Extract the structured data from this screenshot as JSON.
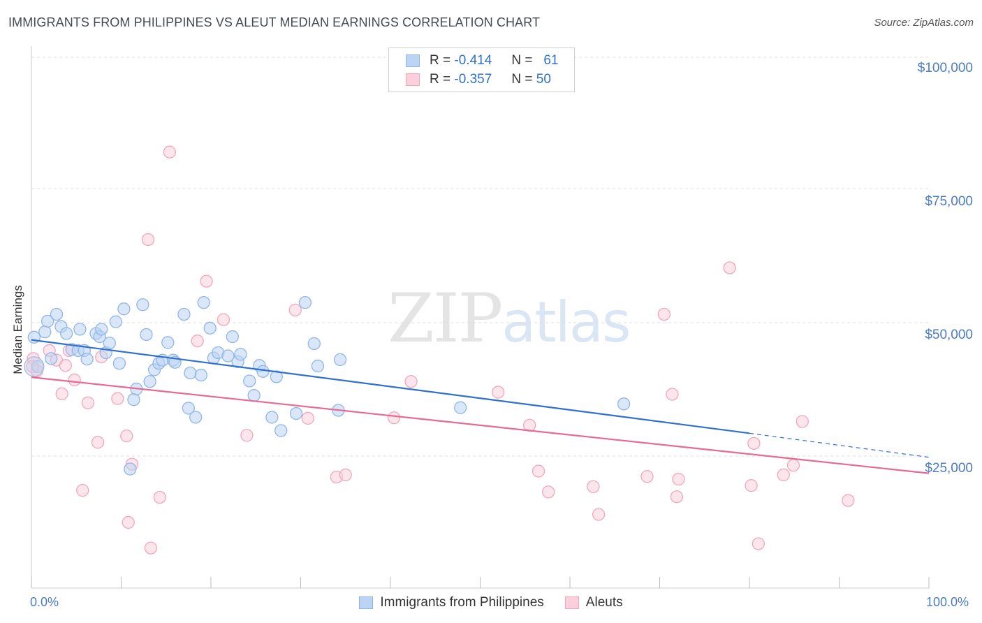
{
  "header": {
    "title": "IMMIGRANTS FROM PHILIPPINES VS ALEUT MEDIAN EARNINGS CORRELATION CHART",
    "source": "Source: ZipAtlas.com"
  },
  "watermark": {
    "zip": "ZIP",
    "atlas": "atlas"
  },
  "legend": {
    "rows": [
      {
        "r_label": "R =",
        "r_value": "-0.414",
        "n_label": "N =",
        "n_value": "61",
        "color": "#8fb6e8",
        "fill": "#bcd4f3"
      },
      {
        "r_label": "R =",
        "r_value": "-0.357",
        "n_label": "N =",
        "n_value": "50",
        "color": "#f0a7bd",
        "fill": "#fbd0dc"
      }
    ]
  },
  "bottom_legend": [
    {
      "label": "Immigrants from Philippines",
      "color": "#8fb6e8",
      "fill": "#bcd4f3"
    },
    {
      "label": "Aleuts",
      "color": "#f0a7bd",
      "fill": "#fbd0dc"
    }
  ],
  "colors": {
    "blue_line": "#2f6fd0",
    "pink_line": "#e66a93",
    "grid": "#dddddd",
    "tick_text": "#4a7cc4"
  },
  "chart_data": {
    "type": "scatter",
    "title": "IMMIGRANTS FROM PHILIPPINES VS ALEUT MEDIAN EARNINGS CORRELATION CHART",
    "xlabel": "",
    "ylabel": "Median Earnings",
    "xlim": [
      0,
      100
    ],
    "ylim": [
      0,
      105000
    ],
    "x_tick_labels": [
      "0.0%",
      "100.0%"
    ],
    "y_ticks": [
      25000,
      50000,
      75000,
      100000
    ],
    "y_tick_labels": [
      "$25,000",
      "$50,000",
      "$75,000",
      "$100,000"
    ],
    "grid": true,
    "legend_position": "top-center",
    "series": [
      {
        "name": "Immigrants from Philippines",
        "trend": {
          "x0": 0,
          "y0": 49000,
          "x1": 80,
          "y1": 31500,
          "dashed_to_x": 100,
          "dashed_to_y": 27000
        },
        "points": [
          [
            0.3,
            49500
          ],
          [
            0.7,
            44000
          ],
          [
            1.5,
            50500
          ],
          [
            1.8,
            52500
          ],
          [
            2.2,
            45500
          ],
          [
            2.8,
            53800
          ],
          [
            3.3,
            51500
          ],
          [
            3.9,
            50200
          ],
          [
            4.5,
            47200
          ],
          [
            5.2,
            47000
          ],
          [
            5.4,
            51000
          ],
          [
            5.9,
            47000
          ],
          [
            6.2,
            45400
          ],
          [
            7.2,
            50200
          ],
          [
            7.6,
            49600
          ],
          [
            7.8,
            51000
          ],
          [
            8.3,
            46600
          ],
          [
            8.7,
            48400
          ],
          [
            9.4,
            52400
          ],
          [
            9.8,
            44600
          ],
          [
            10.3,
            54800
          ],
          [
            11.0,
            24800
          ],
          [
            11.4,
            37800
          ],
          [
            11.7,
            39800
          ],
          [
            12.4,
            55600
          ],
          [
            12.8,
            50000
          ],
          [
            13.2,
            41200
          ],
          [
            13.7,
            43400
          ],
          [
            14.2,
            44600
          ],
          [
            14.6,
            45200
          ],
          [
            15.2,
            48500
          ],
          [
            15.8,
            45200
          ],
          [
            16.0,
            44800
          ],
          [
            17.0,
            53800
          ],
          [
            17.5,
            36200
          ],
          [
            17.7,
            42800
          ],
          [
            18.3,
            34500
          ],
          [
            18.9,
            42400
          ],
          [
            19.2,
            56000
          ],
          [
            19.9,
            51200
          ],
          [
            20.3,
            45600
          ],
          [
            20.8,
            46600
          ],
          [
            21.9,
            46000
          ],
          [
            22.4,
            49600
          ],
          [
            23.0,
            44900
          ],
          [
            23.3,
            46300
          ],
          [
            24.3,
            41300
          ],
          [
            24.8,
            38600
          ],
          [
            25.4,
            44200
          ],
          [
            25.8,
            43100
          ],
          [
            26.8,
            34500
          ],
          [
            27.3,
            42100
          ],
          [
            27.8,
            32000
          ],
          [
            29.5,
            35200
          ],
          [
            30.5,
            56000
          ],
          [
            31.5,
            48300
          ],
          [
            31.9,
            44100
          ],
          [
            34.2,
            35800
          ],
          [
            34.4,
            45300
          ],
          [
            47.8,
            36300
          ],
          [
            66.0,
            37000
          ]
        ]
      },
      {
        "name": "Aleuts",
        "trend": {
          "x0": 0,
          "y0": 42000,
          "x1": 100,
          "y1": 24000
        },
        "points": [
          [
            0.2,
            45500
          ],
          [
            0.6,
            43200
          ],
          [
            2.0,
            47000
          ],
          [
            2.8,
            45200
          ],
          [
            3.4,
            38900
          ],
          [
            3.8,
            44200
          ],
          [
            4.2,
            47000
          ],
          [
            4.8,
            41500
          ],
          [
            5.7,
            20800
          ],
          [
            6.3,
            37200
          ],
          [
            7.4,
            29800
          ],
          [
            7.8,
            45800
          ],
          [
            9.6,
            38000
          ],
          [
            10.6,
            31000
          ],
          [
            10.8,
            14800
          ],
          [
            11.2,
            25700
          ],
          [
            13.0,
            67800
          ],
          [
            13.3,
            10000
          ],
          [
            14.3,
            19500
          ],
          [
            15.4,
            84200
          ],
          [
            18.5,
            48800
          ],
          [
            19.5,
            60000
          ],
          [
            21.4,
            52800
          ],
          [
            24.0,
            31100
          ],
          [
            29.4,
            54600
          ],
          [
            30.8,
            34300
          ],
          [
            34.0,
            23300
          ],
          [
            35.0,
            23700
          ],
          [
            40.4,
            34400
          ],
          [
            42.3,
            41200
          ],
          [
            52.0,
            39200
          ],
          [
            55.5,
            33000
          ],
          [
            56.5,
            24400
          ],
          [
            57.6,
            20500
          ],
          [
            62.6,
            21500
          ],
          [
            63.2,
            16300
          ],
          [
            68.6,
            23400
          ],
          [
            70.5,
            53800
          ],
          [
            71.4,
            38800
          ],
          [
            71.9,
            19600
          ],
          [
            72.1,
            22900
          ],
          [
            77.8,
            62500
          ],
          [
            80.2,
            21700
          ],
          [
            80.5,
            29600
          ],
          [
            81.0,
            10800
          ],
          [
            83.8,
            23700
          ],
          [
            84.9,
            25500
          ],
          [
            85.9,
            33700
          ],
          [
            91.0,
            18900
          ],
          [
            0.1,
            44000
          ]
        ]
      }
    ]
  }
}
